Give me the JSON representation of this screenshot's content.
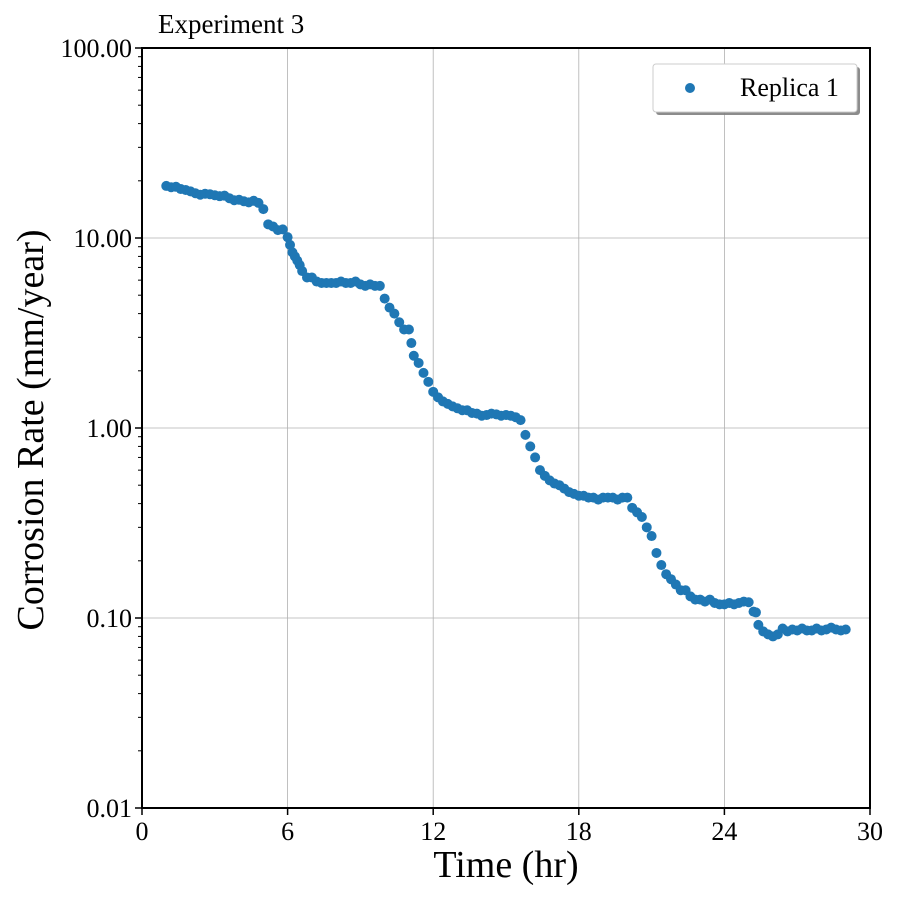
{
  "chart_data": {
    "type": "scatter",
    "title": "Experiment 3",
    "xlabel": "Time (hr)",
    "ylabel": "Corrosion Rate (mm/year)",
    "xlim": [
      0,
      30
    ],
    "ylim": [
      0.01,
      100
    ],
    "yscale": "log",
    "x_ticks": [
      0,
      6,
      12,
      18,
      24,
      30
    ],
    "x_tick_labels": [
      "0",
      "6",
      "12",
      "18",
      "24",
      "30"
    ],
    "y_ticks": [
      0.01,
      0.1,
      1,
      10,
      100
    ],
    "y_tick_labels": [
      "0.01",
      "0.10",
      "1.00",
      "10.00",
      "100.00"
    ],
    "grid": true,
    "legend_position": "top-right",
    "color": "#1f77b4",
    "series": [
      {
        "name": "Replica 1",
        "x": [
          1.0,
          1.2,
          1.4,
          1.6,
          1.8,
          2.0,
          2.2,
          2.4,
          2.6,
          2.8,
          3.0,
          3.2,
          3.4,
          3.6,
          3.8,
          4.0,
          4.2,
          4.4,
          4.6,
          4.8,
          5.0,
          5.2,
          5.4,
          5.6,
          5.8,
          6.0,
          6.1,
          6.2,
          6.3,
          6.4,
          6.5,
          6.6,
          6.8,
          7.0,
          7.2,
          7.4,
          7.6,
          7.8,
          8.0,
          8.2,
          8.4,
          8.6,
          8.8,
          9.0,
          9.2,
          9.4,
          9.6,
          9.8,
          10.0,
          10.2,
          10.4,
          10.6,
          10.8,
          11.0,
          11.1,
          11.2,
          11.4,
          11.6,
          11.8,
          12.0,
          12.2,
          12.4,
          12.6,
          12.8,
          13.0,
          13.2,
          13.4,
          13.6,
          13.8,
          14.0,
          14.2,
          14.4,
          14.6,
          14.8,
          15.0,
          15.2,
          15.4,
          15.6,
          15.8,
          16.0,
          16.2,
          16.4,
          16.6,
          16.8,
          17.0,
          17.2,
          17.4,
          17.6,
          17.8,
          18.0,
          18.2,
          18.4,
          18.6,
          18.8,
          19.0,
          19.2,
          19.4,
          19.6,
          19.8,
          20.0,
          20.2,
          20.4,
          20.6,
          20.8,
          21.0,
          21.2,
          21.4,
          21.6,
          21.8,
          22.0,
          22.2,
          22.4,
          22.6,
          22.8,
          23.0,
          23.2,
          23.4,
          23.6,
          23.8,
          24.0,
          24.2,
          24.4,
          24.6,
          24.8,
          25.0,
          25.2,
          25.3,
          25.4,
          25.6,
          25.8,
          26.0,
          26.2,
          26.4,
          26.6,
          26.8,
          27.0,
          27.2,
          27.4,
          27.6,
          27.8,
          28.0,
          28.2,
          28.4,
          28.6,
          28.8,
          29.0
        ],
        "y": [
          18.8,
          18.5,
          18.6,
          18.1,
          17.9,
          17.6,
          17.2,
          16.9,
          17.1,
          17.0,
          16.8,
          16.6,
          16.7,
          16.2,
          15.8,
          15.9,
          15.6,
          15.4,
          15.7,
          15.3,
          14.2,
          11.8,
          11.5,
          11.0,
          11.1,
          10.1,
          9.2,
          8.4,
          8.0,
          7.6,
          7.2,
          6.7,
          6.2,
          6.2,
          5.9,
          5.8,
          5.8,
          5.8,
          5.8,
          5.9,
          5.8,
          5.8,
          5.9,
          5.7,
          5.6,
          5.7,
          5.6,
          5.6,
          4.8,
          4.3,
          4.0,
          3.6,
          3.3,
          3.3,
          2.8,
          2.4,
          2.2,
          1.95,
          1.75,
          1.55,
          1.45,
          1.38,
          1.34,
          1.3,
          1.27,
          1.24,
          1.24,
          1.2,
          1.19,
          1.16,
          1.17,
          1.19,
          1.18,
          1.16,
          1.17,
          1.16,
          1.14,
          1.1,
          0.92,
          0.8,
          0.7,
          0.6,
          0.56,
          0.53,
          0.51,
          0.5,
          0.48,
          0.46,
          0.45,
          0.44,
          0.44,
          0.43,
          0.43,
          0.42,
          0.43,
          0.43,
          0.43,
          0.42,
          0.43,
          0.43,
          0.38,
          0.36,
          0.34,
          0.3,
          0.27,
          0.22,
          0.19,
          0.17,
          0.16,
          0.15,
          0.14,
          0.14,
          0.13,
          0.125,
          0.125,
          0.122,
          0.125,
          0.12,
          0.118,
          0.118,
          0.12,
          0.118,
          0.12,
          0.122,
          0.121,
          0.108,
          0.107,
          0.092,
          0.085,
          0.082,
          0.08,
          0.082,
          0.088,
          0.085,
          0.087,
          0.086,
          0.088,
          0.086,
          0.086,
          0.088,
          0.086,
          0.087,
          0.089,
          0.087,
          0.086,
          0.087
        ]
      }
    ]
  }
}
